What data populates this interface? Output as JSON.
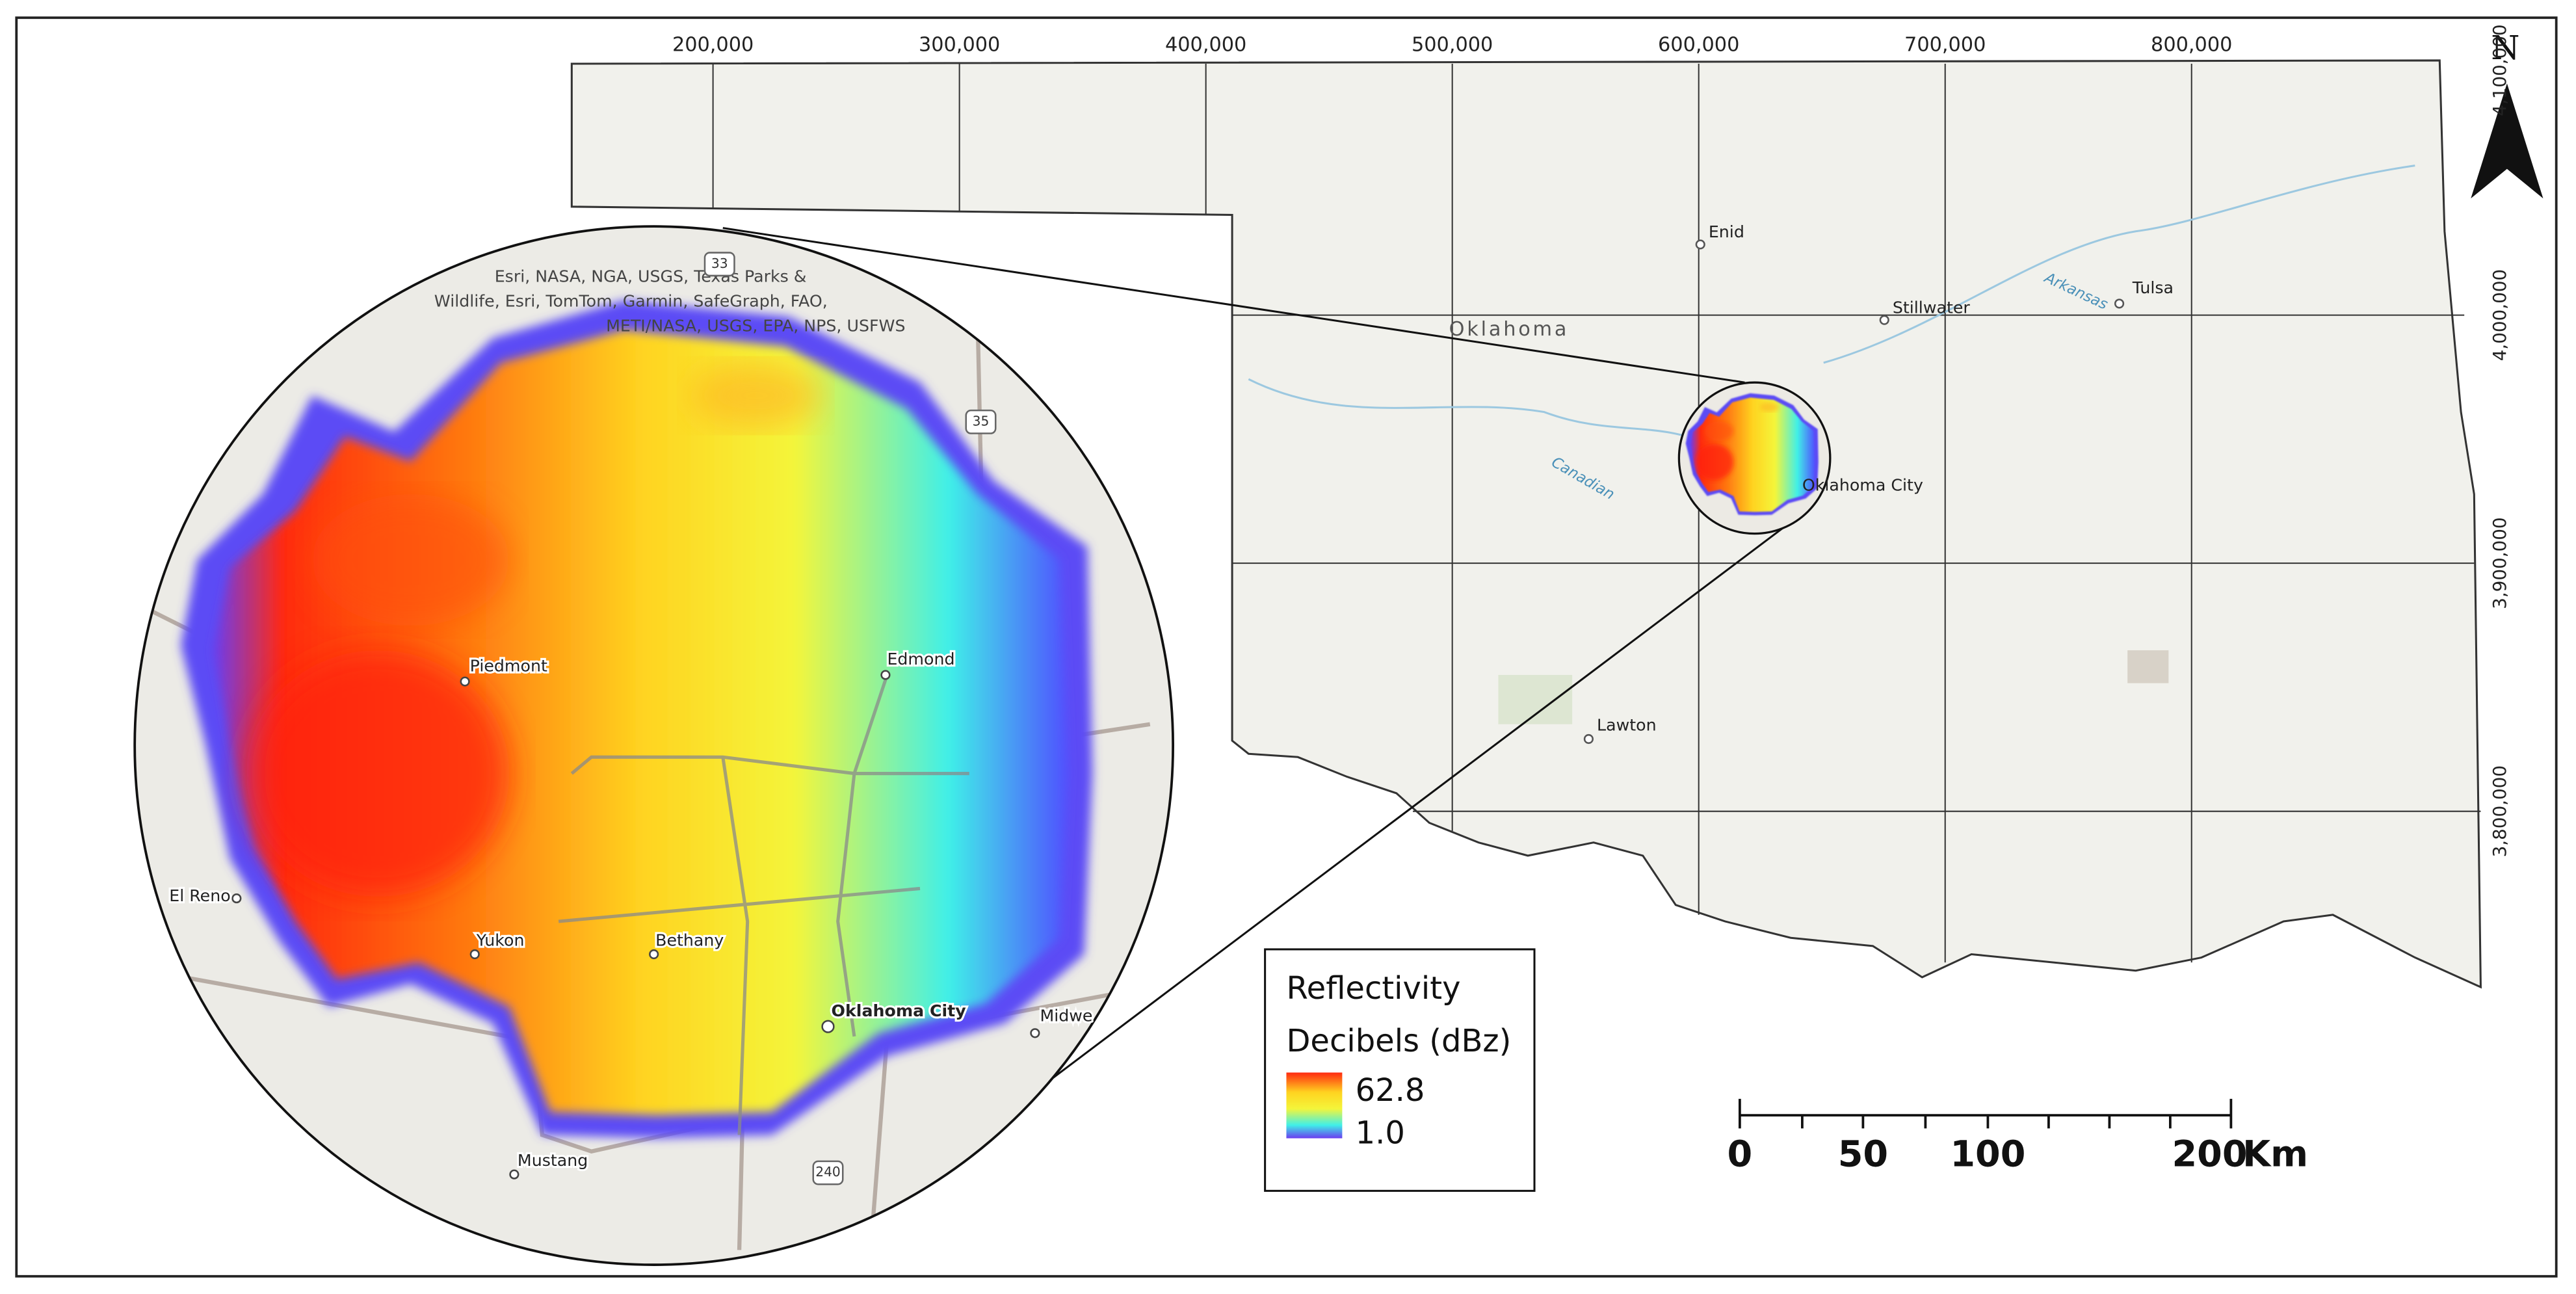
{
  "north": "N",
  "grid": {
    "x_labels": [
      "200,000",
      "300,000",
      "400,000",
      "500,000",
      "600,000",
      "700,000",
      "800,000"
    ],
    "y_labels": [
      "4,100,000",
      "4,000,000",
      "3,900,000",
      "3,800,000"
    ]
  },
  "state_map": {
    "state_label": "Oklahoma",
    "rivers": [
      "Canadian",
      "Arkansas"
    ],
    "cities": [
      "Enid",
      "Stillwater",
      "Tulsa",
      "Oklahoma City",
      "Lawton"
    ]
  },
  "inset": {
    "attribution": [
      "Esri, NASA, NGA, USGS, Texas Parks &",
      "Wildlife, Esri, TomTom, Garmin, SafeGraph, FAO,",
      "METI/NASA, USGS, EPA, NPS, USFWS"
    ],
    "cities": [
      "Piedmont",
      "Edmond",
      "El Reno",
      "Yukon",
      "Bethany",
      "Oklahoma City",
      "Mustang",
      "Midwe"
    ],
    "highway_shields": [
      "33",
      "35",
      "240"
    ]
  },
  "legend": {
    "title": "Reflectivity",
    "subtitle": "Decibels (dBz)",
    "max": "62.8",
    "min": "1.0"
  },
  "scale_bar": {
    "labels": [
      "0",
      "50",
      "100",
      "200"
    ],
    "unit": "Km"
  }
}
